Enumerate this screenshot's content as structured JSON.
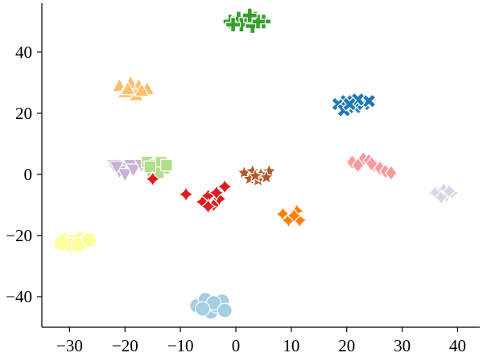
{
  "chart_data": {
    "type": "scatter",
    "title": "",
    "xlabel": "",
    "ylabel": "",
    "xlim": [
      -35,
      44
    ],
    "ylim": [
      -50,
      56
    ],
    "grid": false,
    "x_ticks": [
      -30,
      -20,
      -10,
      0,
      10,
      20,
      30,
      40
    ],
    "y_ticks": [
      -40,
      -20,
      0,
      20,
      40
    ],
    "x_tick_labels": [
      "−30",
      "−20",
      "−10",
      "0",
      "10",
      "20",
      "30",
      "40"
    ],
    "y_tick_labels": [
      "−40",
      "−20",
      "0",
      "20",
      "40"
    ],
    "series": [
      {
        "color": "#33a02c",
        "marker": "plus",
        "points": [
          [
            -1,
            50
          ],
          [
            0.5,
            51
          ],
          [
            2,
            50.5
          ],
          [
            3.5,
            51
          ],
          [
            5,
            50
          ],
          [
            1,
            49
          ],
          [
            3,
            48.5
          ],
          [
            4,
            50
          ],
          [
            -0.5,
            49
          ],
          [
            2.5,
            52
          ]
        ]
      },
      {
        "color": "#fdbf6f",
        "marker": "triangle",
        "points": [
          [
            -21,
            29
          ],
          [
            -19,
            30
          ],
          [
            -17.5,
            29
          ],
          [
            -16,
            28
          ],
          [
            -18,
            26
          ],
          [
            -20,
            27
          ],
          [
            -17,
            27.5
          ],
          [
            -19.5,
            28
          ]
        ]
      },
      {
        "color": "#1f78b4",
        "marker": "x",
        "points": [
          [
            18.5,
            23
          ],
          [
            20,
            24
          ],
          [
            21.5,
            22
          ],
          [
            23,
            23
          ],
          [
            24,
            24
          ],
          [
            19.5,
            21
          ],
          [
            22,
            24.5
          ],
          [
            20.5,
            23
          ]
        ]
      },
      {
        "color": "#cab2d6",
        "marker": "triangle-down",
        "points": [
          [
            -22,
            3
          ],
          [
            -20.5,
            2
          ],
          [
            -19,
            3
          ],
          [
            -21,
            1
          ],
          [
            -20,
            0
          ],
          [
            -18.5,
            1.5
          ],
          [
            -17,
            3
          ],
          [
            -21.5,
            2.5
          ]
        ]
      },
      {
        "color": "#b2df8a",
        "marker": "square",
        "points": [
          [
            -16,
            4
          ],
          [
            -14.5,
            3
          ],
          [
            -13,
            2
          ],
          [
            -15,
            1
          ],
          [
            -13.5,
            4
          ],
          [
            -14,
            0.5
          ],
          [
            -12.5,
            3
          ],
          [
            -15.5,
            2.5
          ]
        ]
      },
      {
        "color": "#e31a1c",
        "marker": "diamond4",
        "points": [
          [
            -15,
            -1.5
          ],
          [
            -9,
            -6.5
          ],
          [
            -6,
            -9
          ],
          [
            -5,
            -7
          ],
          [
            -4,
            -10
          ],
          [
            -3,
            -8
          ],
          [
            -2,
            -4
          ],
          [
            -5,
            -10.5
          ],
          [
            -3.5,
            -6
          ]
        ]
      },
      {
        "color": "#b15928",
        "marker": "star",
        "points": [
          [
            1.5,
            0.5
          ],
          [
            3,
            1
          ],
          [
            4.5,
            0
          ],
          [
            6,
            1
          ],
          [
            2.5,
            -1.5
          ],
          [
            4,
            -2
          ],
          [
            5.5,
            -1
          ],
          [
            3.5,
            -0.5
          ]
        ]
      },
      {
        "color": "#fb9a99",
        "marker": "diamond",
        "points": [
          [
            21,
            4
          ],
          [
            23,
            5
          ],
          [
            24,
            4.5
          ],
          [
            25,
            3
          ],
          [
            26,
            2
          ],
          [
            22,
            3
          ],
          [
            24.5,
            3.5
          ],
          [
            27,
            1
          ],
          [
            28,
            0.5
          ]
        ]
      },
      {
        "color": "#ff7f00",
        "marker": "diamond4",
        "points": [
          [
            8.5,
            -13
          ],
          [
            10,
            -14
          ],
          [
            11,
            -12
          ],
          [
            11.5,
            -15
          ],
          [
            9.5,
            -15
          ],
          [
            10.5,
            -13.5
          ]
        ]
      },
      {
        "color": "#dcd3ea",
        "marker": "diamond4",
        "points": [
          [
            36,
            -6
          ],
          [
            37.5,
            -5
          ],
          [
            38,
            -7
          ],
          [
            39,
            -6
          ],
          [
            37,
            -7.5
          ],
          [
            38.5,
            -5.5
          ]
        ]
      },
      {
        "color": "#ffff99",
        "marker": "circle",
        "points": [
          [
            -31,
            -21.5
          ],
          [
            -29.5,
            -22
          ],
          [
            -28,
            -21
          ],
          [
            -27,
            -22
          ],
          [
            -30,
            -23
          ],
          [
            -28.5,
            -23
          ],
          [
            -26.5,
            -21.5
          ],
          [
            -31.5,
            -22.5
          ]
        ]
      },
      {
        "color": "#a6cee3",
        "marker": "circle",
        "points": [
          [
            -7,
            -43
          ],
          [
            -5.5,
            -41
          ],
          [
            -4.5,
            -45
          ],
          [
            -3.5,
            -43
          ],
          [
            -2.5,
            -41.5
          ],
          [
            -4,
            -42
          ],
          [
            -2,
            -44.5
          ],
          [
            -6,
            -44
          ]
        ]
      }
    ]
  }
}
